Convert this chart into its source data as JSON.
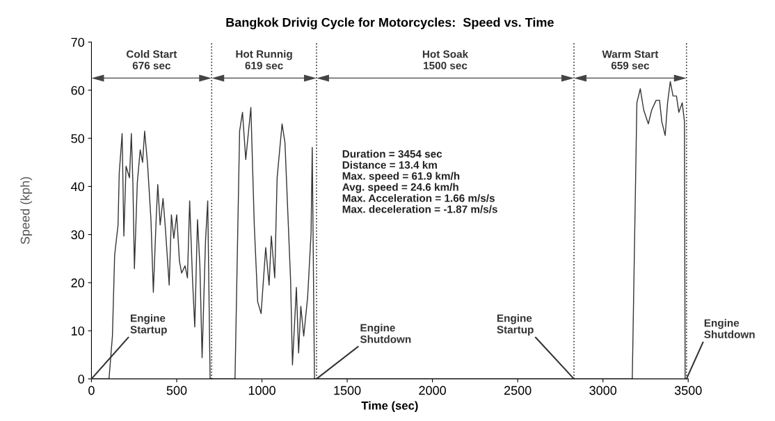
{
  "chart_data": {
    "type": "line",
    "title": "Bangkok Drivig Cycle for Motorcycles:  Speed vs. Time",
    "xlabel": "Time (sec)",
    "ylabel": "Speed (kph)",
    "x": [
      0,
      103,
      123,
      136,
      156,
      163,
      180,
      190,
      203,
      223,
      234,
      243,
      252,
      269,
      286,
      300,
      312,
      329,
      349,
      363,
      380,
      389,
      403,
      420,
      433,
      456,
      469,
      483,
      500,
      516,
      529,
      549,
      563,
      576,
      593,
      606,
      622,
      636,
      649,
      669,
      682,
      696,
      842,
      869,
      886,
      905,
      935,
      955,
      975,
      995,
      1022,
      1042,
      1055,
      1075,
      1089,
      1118,
      1135,
      1168,
      1179,
      1202,
      1215,
      1228,
      1245,
      1268,
      1288,
      1295,
      1308,
      3172,
      3199,
      3219,
      3239,
      3266,
      3286,
      3312,
      3332,
      3345,
      3365,
      3379,
      3395,
      3411,
      3431,
      3445,
      3465,
      3478,
      3482
    ],
    "series": [
      {
        "color": "#333333",
        "values": [
          0,
          0,
          8.9,
          25.7,
          32,
          42.8,
          51,
          29.7,
          44.2,
          41.8,
          51,
          40.8,
          22.9,
          40.8,
          47.6,
          45,
          51.5,
          44.7,
          33.1,
          18,
          33.6,
          40.4,
          32,
          37.5,
          31.6,
          19.5,
          34.1,
          29.2,
          34.1,
          24.5,
          22,
          23.5,
          21,
          37,
          20.5,
          10.8,
          33.1,
          23.5,
          4.4,
          28.7,
          37,
          0,
          0,
          51.5,
          55.4,
          45.6,
          56.4,
          32,
          16,
          13.6,
          27.3,
          19.5,
          29.7,
          21,
          41.8,
          53,
          49.1,
          20.5,
          2.9,
          19,
          5.4,
          15.1,
          8.9,
          17,
          30.2,
          48.1,
          0,
          0,
          57.4,
          60.3,
          55.9,
          53,
          55.9,
          57.9,
          57.9,
          53.5,
          50.6,
          57.4,
          61.8,
          58.8,
          58.8,
          55.4,
          57.4,
          53.5,
          0
        ]
      }
    ],
    "xlim": [
      0,
      3500
    ],
    "xticks": [
      0,
      500,
      1000,
      1500,
      2000,
      2500,
      3000,
      3500
    ],
    "ylim": [
      0,
      70
    ],
    "yticks": [
      0,
      10,
      20,
      30,
      40,
      50,
      60,
      70
    ],
    "grid": false,
    "line_style": "solid",
    "ref_lines": [
      {
        "axis": "x",
        "value": 705,
        "line_style": "dotted"
      },
      {
        "axis": "x",
        "value": 1320,
        "line_style": "dotted"
      },
      {
        "axis": "x",
        "value": 2830,
        "line_style": "dotted"
      },
      {
        "axis": "x",
        "value": 3490,
        "line_style": "dotted"
      }
    ],
    "annotations": [
      "Cold Start\n676 sec",
      "Hot Runnig\n619 sec",
      "Hot Soak\n1500 sec",
      "Warm Start\n659 sec",
      "Duration = 3454 sec\nDistance = 13.4 km\nMax. speed = 61.9 km/h\nAvg. speed = 24.6 km/h\nMax. Acceleration = 1.66 m/s/s\nMax. deceleration = -1.87 m/s/s",
      {
        "text": "Engine\nStartup",
        "x": 0,
        "y": 0
      },
      {
        "text": "Engine\nShutdown",
        "x": 1320,
        "y": 0
      },
      {
        "text": "Engine\nStartup",
        "x": 2830,
        "y": 0
      },
      {
        "text": "Engine\nShutdown",
        "x": 3490,
        "y": 0
      }
    ]
  }
}
